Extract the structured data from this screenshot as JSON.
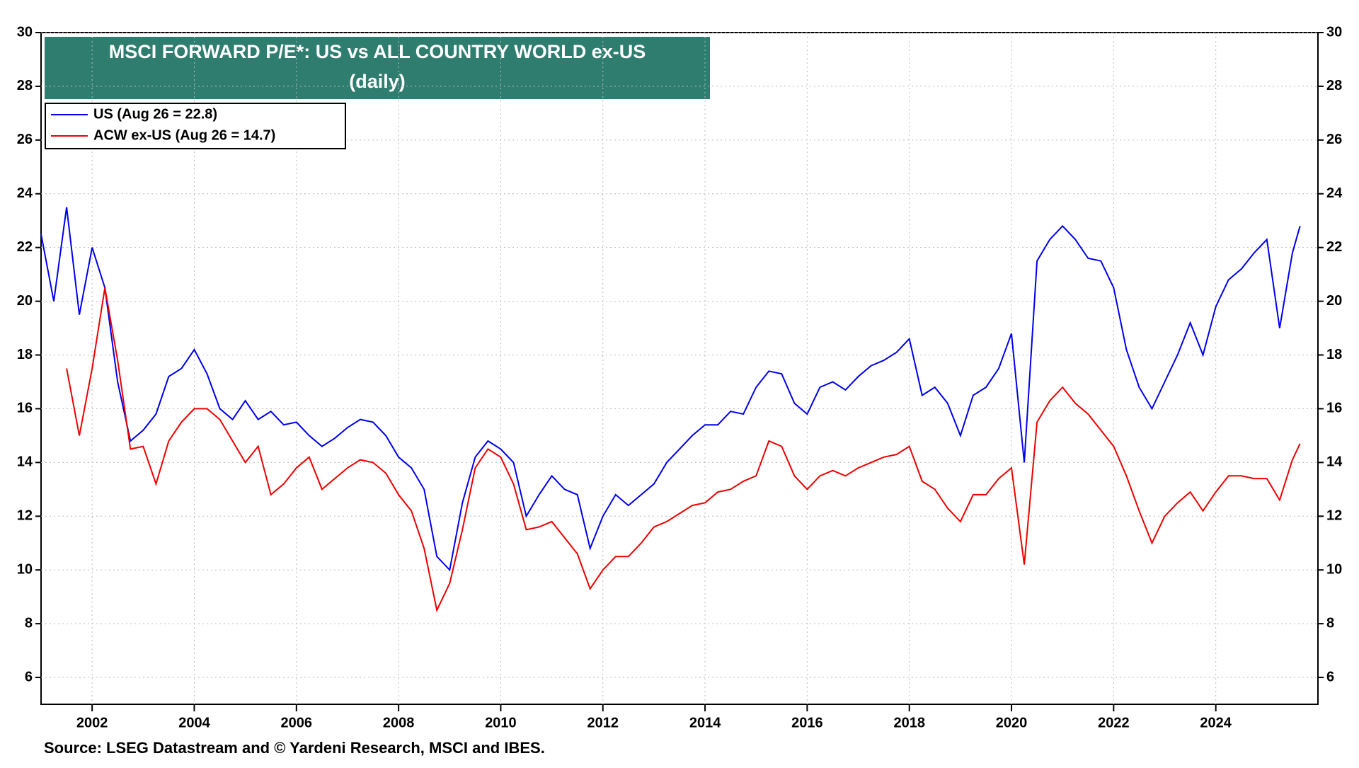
{
  "chart_data": {
    "type": "line",
    "title": "MSCI FORWARD P/E*: US vs ALL COUNTRY WORLD ex-US",
    "subtitle": "(daily)",
    "source": "Source: LSEG Datastream and © Yardeni Research, MSCI and IBES.",
    "xlim": [
      2001,
      2026
    ],
    "xticks": [
      2002,
      2004,
      2006,
      2008,
      2010,
      2012,
      2014,
      2016,
      2018,
      2020,
      2022,
      2024
    ],
    "ylim": [
      5,
      30
    ],
    "yticks": [
      6,
      8,
      10,
      12,
      14,
      16,
      18,
      20,
      22,
      24,
      26,
      28,
      30
    ],
    "grid": true,
    "legend": "upper left",
    "x": [
      2001,
      2001.25,
      2001.5,
      2001.75,
      2002,
      2002.25,
      2002.5,
      2002.75,
      2003,
      2003.25,
      2003.5,
      2003.75,
      2004,
      2004.25,
      2004.5,
      2004.75,
      2005,
      2005.25,
      2005.5,
      2005.75,
      2006,
      2006.25,
      2006.5,
      2006.75,
      2007,
      2007.25,
      2007.5,
      2007.75,
      2008,
      2008.25,
      2008.5,
      2008.75,
      2009,
      2009.25,
      2009.5,
      2009.75,
      2010,
      2010.25,
      2010.5,
      2010.75,
      2011,
      2011.25,
      2011.5,
      2011.75,
      2012,
      2012.25,
      2012.5,
      2012.75,
      2013,
      2013.25,
      2013.5,
      2013.75,
      2014,
      2014.25,
      2014.5,
      2014.75,
      2015,
      2015.25,
      2015.5,
      2015.75,
      2016,
      2016.25,
      2016.5,
      2016.75,
      2017,
      2017.25,
      2017.5,
      2017.75,
      2018,
      2018.25,
      2018.5,
      2018.75,
      2019,
      2019.25,
      2019.5,
      2019.75,
      2020,
      2020.25,
      2020.5,
      2020.75,
      2021,
      2021.25,
      2021.5,
      2021.75,
      2022,
      2022.25,
      2022.5,
      2022.75,
      2023,
      2023.25,
      2023.5,
      2023.75,
      2024,
      2024.25,
      2024.5,
      2024.75,
      2025,
      2025.25,
      2025.5,
      2025.65
    ],
    "series": [
      {
        "name": "US (Aug 26 = 22.8)",
        "color": "#0000ee",
        "values": [
          22.5,
          20.0,
          23.5,
          19.5,
          22.0,
          20.5,
          17.0,
          14.8,
          15.2,
          15.8,
          17.2,
          17.5,
          18.2,
          17.3,
          16.0,
          15.6,
          16.3,
          15.6,
          15.9,
          15.4,
          15.5,
          15.0,
          14.6,
          14.9,
          15.3,
          15.6,
          15.5,
          15.0,
          14.2,
          13.8,
          13.0,
          10.5,
          10.0,
          12.5,
          14.2,
          14.8,
          14.5,
          14.0,
          12.0,
          12.8,
          13.5,
          13.0,
          12.8,
          10.8,
          12.0,
          12.8,
          12.4,
          12.8,
          13.2,
          14.0,
          14.5,
          15.0,
          15.4,
          15.4,
          15.9,
          15.8,
          16.8,
          17.4,
          17.3,
          16.2,
          15.8,
          16.8,
          17.0,
          16.7,
          17.2,
          17.6,
          17.8,
          18.1,
          18.6,
          16.5,
          16.8,
          16.2,
          15.0,
          16.5,
          16.8,
          17.5,
          18.8,
          14.0,
          21.5,
          22.3,
          22.8,
          22.3,
          21.6,
          21.5,
          20.5,
          18.2,
          16.8,
          16.0,
          17.0,
          18.0,
          19.2,
          18.0,
          19.8,
          20.8,
          21.2,
          21.8,
          22.3,
          19.0,
          21.8,
          22.8
        ]
      },
      {
        "name": "ACW ex-US (Aug 26 = 14.7)",
        "color": "#ee0000",
        "values": [
          null,
          null,
          17.5,
          15.0,
          17.5,
          20.5,
          17.8,
          14.5,
          14.6,
          13.2,
          14.8,
          15.5,
          16.0,
          16.0,
          15.6,
          14.8,
          14.0,
          14.6,
          12.8,
          13.2,
          13.8,
          14.2,
          13.0,
          13.4,
          13.8,
          14.1,
          14.0,
          13.6,
          12.8,
          12.2,
          10.8,
          8.5,
          9.5,
          11.5,
          13.8,
          14.5,
          14.2,
          13.2,
          11.5,
          11.6,
          11.8,
          11.2,
          10.6,
          9.3,
          10.0,
          10.5,
          10.5,
          11.0,
          11.6,
          11.8,
          12.1,
          12.4,
          12.5,
          12.9,
          13.0,
          13.3,
          13.5,
          14.8,
          14.6,
          13.5,
          13.0,
          13.5,
          13.7,
          13.5,
          13.8,
          14.0,
          14.2,
          14.3,
          14.6,
          13.3,
          13.0,
          12.3,
          11.8,
          12.8,
          12.8,
          13.4,
          13.8,
          10.2,
          15.5,
          16.3,
          16.8,
          16.2,
          15.8,
          15.2,
          14.6,
          13.5,
          12.2,
          11.0,
          12.0,
          12.5,
          12.9,
          12.2,
          12.9,
          13.5,
          13.5,
          13.4,
          13.4,
          12.6,
          14.1,
          14.7
        ]
      }
    ]
  }
}
